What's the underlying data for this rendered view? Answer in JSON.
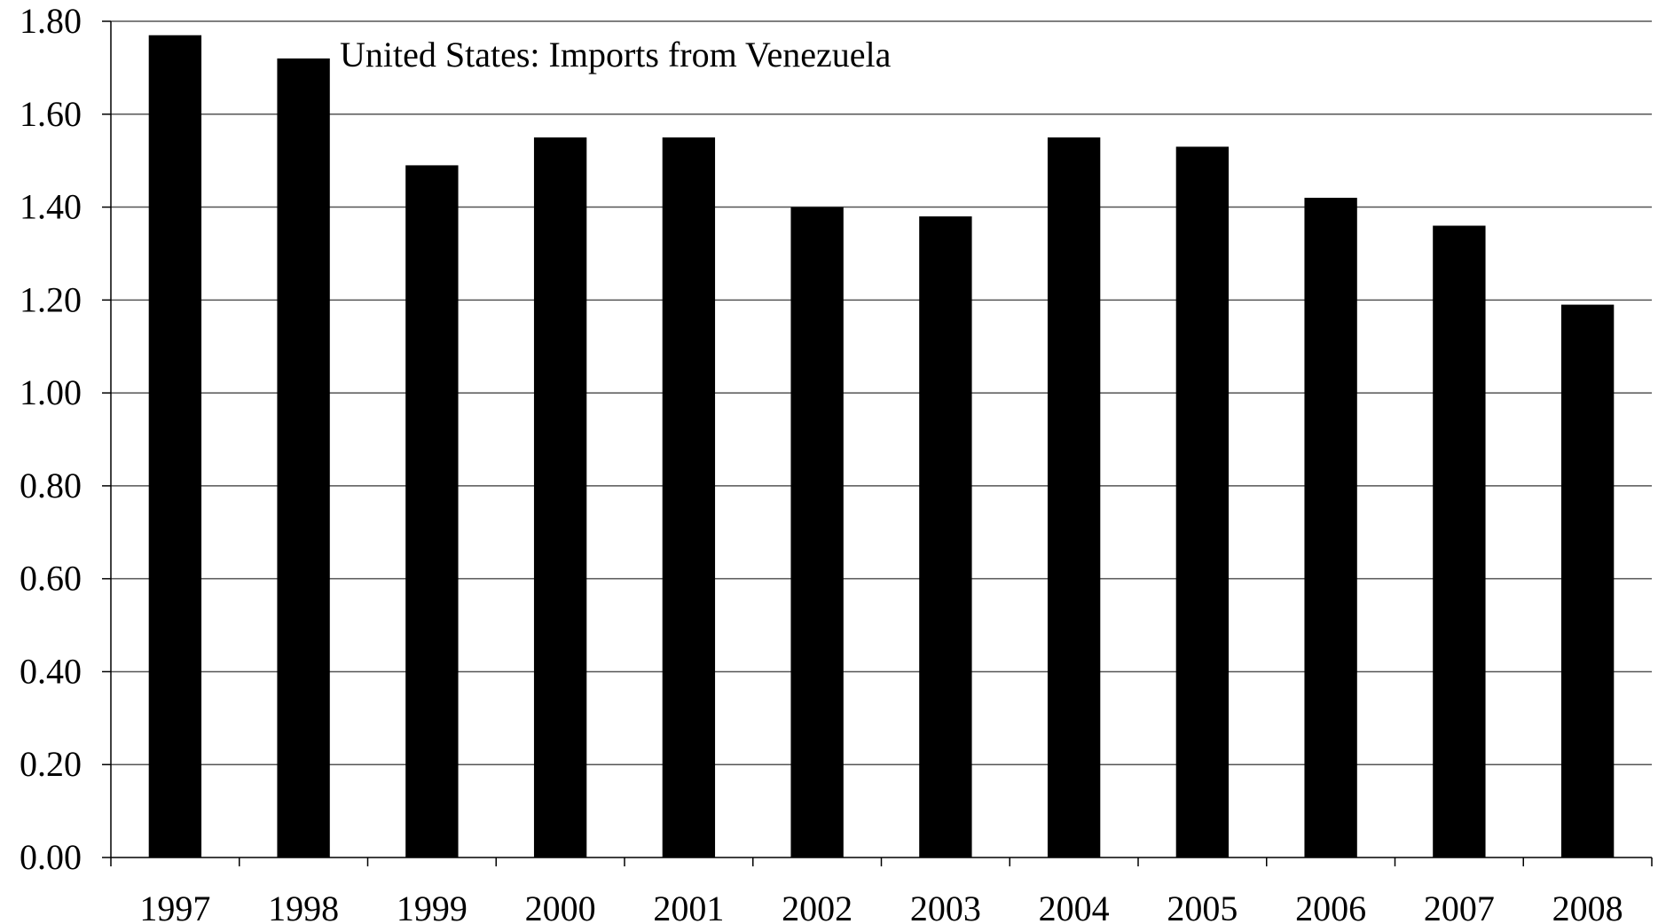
{
  "chart_data": {
    "type": "bar",
    "title": "United States: Imports from Venezuela",
    "categories": [
      "1997",
      "1998",
      "1999",
      "2000",
      "2001",
      "2002",
      "2003",
      "2004",
      "2005",
      "2006",
      "2007",
      "2008"
    ],
    "values": [
      1.77,
      1.72,
      1.49,
      1.55,
      1.55,
      1.4,
      1.38,
      1.55,
      1.53,
      1.42,
      1.36,
      1.19
    ],
    "ylim": [
      0,
      1.8
    ],
    "yticks": [
      "0.00",
      "0.20",
      "0.40",
      "0.60",
      "0.80",
      "1.00",
      "1.20",
      "1.40",
      "1.60",
      "1.80"
    ],
    "grid": true,
    "colors": {
      "bar": "#000000",
      "grid": "#555555",
      "axis": "#000000"
    }
  }
}
